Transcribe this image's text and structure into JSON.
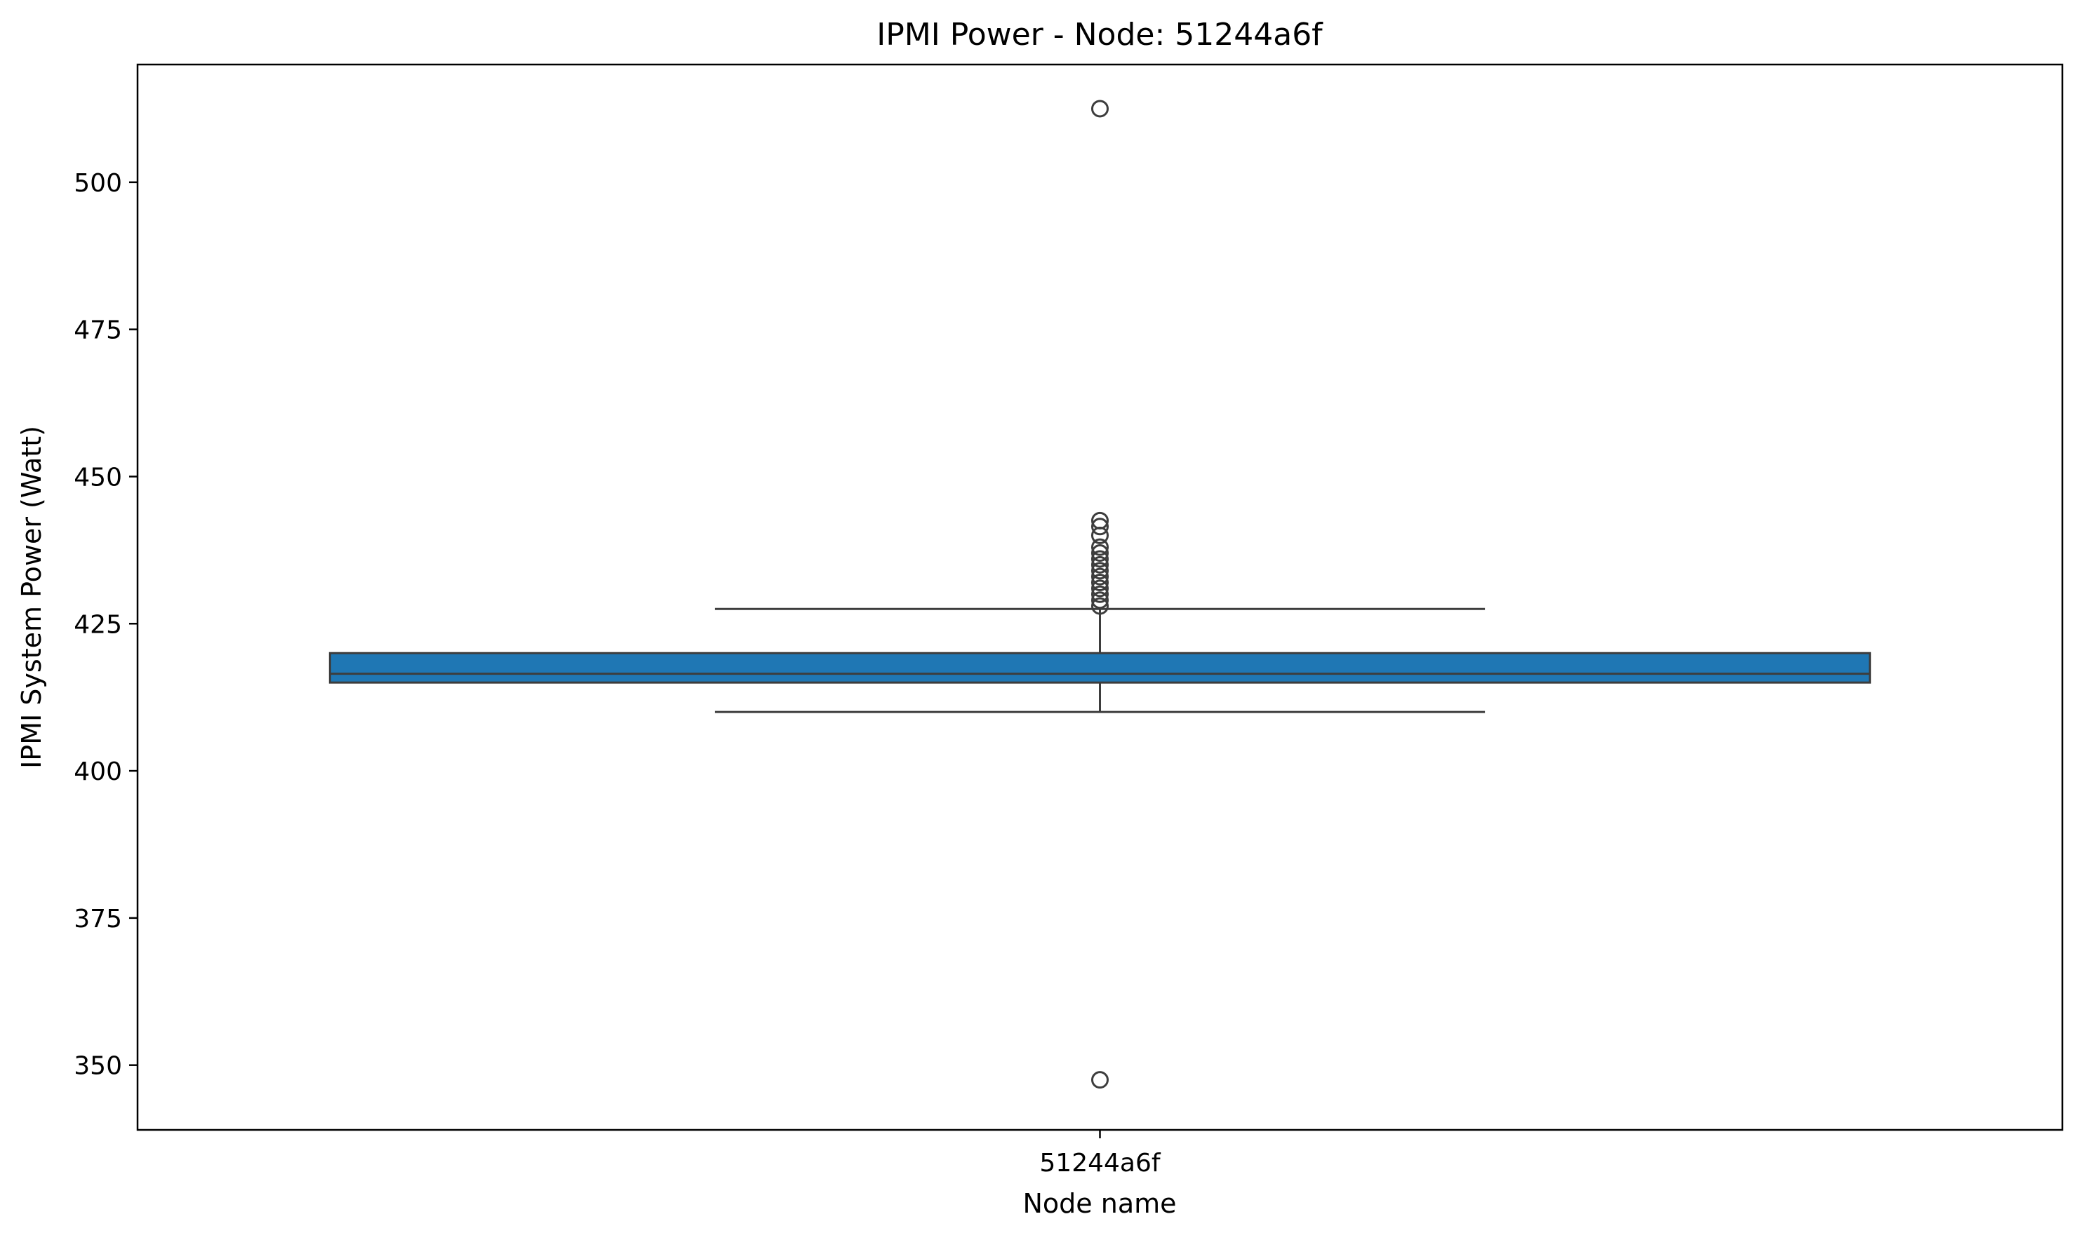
{
  "chart_data": {
    "type": "box",
    "title": "IPMI Power - Node: 51244a6f",
    "xlabel": "Node name",
    "ylabel": "IPMI System Power (Watt)",
    "categories": [
      "51244a6f"
    ],
    "ylim": [
      339,
      520
    ],
    "yticks": [
      350,
      375,
      400,
      425,
      450,
      475,
      500
    ],
    "grid": false,
    "box_color": "#1f77b4",
    "line_color": "#3d3d3d",
    "boxes": [
      {
        "category": "51244a6f",
        "whisker_low": 410,
        "q1": 415,
        "median": 416.5,
        "q3": 420,
        "whisker_high": 427.5,
        "outliers": [
          347.5,
          428,
          429,
          430,
          431,
          432,
          433,
          434,
          435,
          436,
          437,
          438,
          440,
          441.5,
          442.5,
          512.5
        ]
      }
    ]
  }
}
